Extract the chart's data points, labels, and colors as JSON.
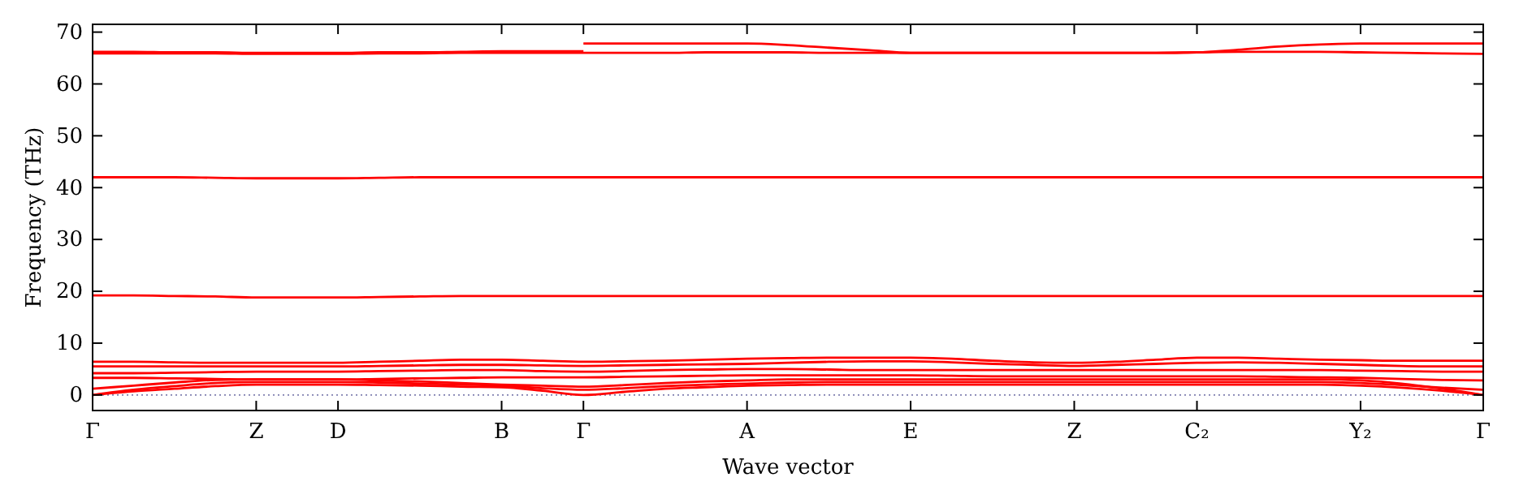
{
  "chart_data": {
    "type": "line",
    "xlabel": "Wave vector",
    "ylabel": "Frequency (THz)",
    "categories": [
      "Γ",
      null,
      null,
      null,
      "Z",
      null,
      "D",
      null,
      null,
      null,
      "B",
      null,
      "Γ",
      null,
      null,
      null,
      "A",
      null,
      null,
      null,
      "E",
      null,
      null,
      null,
      "Z",
      null,
      null,
      "C₂",
      null,
      null,
      null,
      "Y₂",
      null,
      null,
      "Γ"
    ],
    "ylim": [
      -3,
      71.5
    ],
    "yticks": [
      0,
      10,
      20,
      30,
      40,
      50,
      60,
      70
    ],
    "ref_lines": [
      {
        "axis": "y",
        "value": 0,
        "color": "#8080b0",
        "line_style": "dotted"
      }
    ],
    "series": [
      {
        "color": "#ff0000",
        "values": [
          0,
          0.7,
          1.2,
          1.7,
          2,
          2,
          2,
          1.9,
          1.8,
          1.6,
          1.5,
          0.8,
          0,
          0.6,
          1.2,
          1.5,
          1.8,
          1.9,
          2,
          2,
          2,
          2,
          2,
          2,
          2,
          2,
          2,
          2,
          2,
          2,
          2,
          1.8,
          1.4,
          0.8,
          0
        ]
      },
      {
        "color": "#ff0000",
        "values": [
          0,
          1,
          1.7,
          2.3,
          2.5,
          2.5,
          2.5,
          2.4,
          2.2,
          2,
          1.8,
          1.3,
          1,
          1.3,
          1.7,
          2,
          2.2,
          2.4,
          2.5,
          2.5,
          2.5,
          2.5,
          2.5,
          2.5,
          2.5,
          2.5,
          2.5,
          2.5,
          2.5,
          2.5,
          2.5,
          2.3,
          1.9,
          1.4,
          1
        ]
      },
      {
        "color": "#ff0000",
        "values": [
          1.2,
          1.8,
          2.4,
          2.9,
          3,
          3,
          3,
          2.8,
          2.6,
          2.3,
          2,
          1.8,
          1.6,
          1.9,
          2.3,
          2.6,
          2.8,
          3,
          3,
          3,
          3,
          3,
          3,
          3,
          3,
          3,
          3,
          3,
          3,
          3,
          3,
          2.8,
          2.2,
          1.2,
          0
        ]
      },
      {
        "color": "#ff0000",
        "values": [
          3.3,
          3.3,
          3.2,
          3.1,
          3,
          3,
          3,
          3.1,
          3.2,
          3.3,
          3.4,
          3.4,
          3.4,
          3.5,
          3.6,
          3.7,
          3.8,
          3.8,
          3.8,
          3.8,
          3.8,
          3.7,
          3.6,
          3.6,
          3.6,
          3.6,
          3.6,
          3.6,
          3.6,
          3.5,
          3.4,
          3.3,
          3.1,
          2.9,
          2.8
        ]
      },
      {
        "color": "#ff0000",
        "values": [
          4.2,
          4.2,
          4.3,
          4.4,
          4.5,
          4.5,
          4.5,
          4.6,
          4.7,
          4.8,
          4.8,
          4.6,
          4.5,
          4.6,
          4.8,
          4.9,
          5,
          5,
          4.9,
          4.8,
          4.8,
          4.8,
          4.8,
          4.8,
          4.8,
          4.8,
          4.8,
          4.8,
          4.8,
          4.8,
          4.8,
          4.7,
          4.6,
          4.5,
          4.5
        ]
      },
      {
        "color": "#ff0000",
        "values": [
          5.5,
          5.5,
          5.5,
          5.5,
          5.5,
          5.5,
          5.5,
          5.6,
          5.7,
          5.8,
          5.8,
          5.7,
          5.6,
          5.7,
          5.8,
          5.9,
          6,
          6.2,
          6.4,
          6.5,
          6.5,
          6.3,
          6,
          5.8,
          5.6,
          5.8,
          6,
          6.2,
          6.3,
          6.2,
          6,
          5.8,
          5.6,
          5.5,
          5.5
        ]
      },
      {
        "color": "#ff0000",
        "values": [
          6.4,
          6.4,
          6.3,
          6.2,
          6.2,
          6.2,
          6.2,
          6.4,
          6.6,
          6.8,
          6.8,
          6.6,
          6.4,
          6.5,
          6.6,
          6.8,
          7,
          7.1,
          7.2,
          7.2,
          7.2,
          7,
          6.6,
          6.3,
          6.2,
          6.4,
          6.8,
          7.2,
          7.2,
          7,
          6.8,
          6.7,
          6.6,
          6.6,
          6.6
        ]
      },
      {
        "color": "#ff0000",
        "values": [
          19.2,
          19.2,
          19.1,
          19,
          18.8,
          18.8,
          18.8,
          18.9,
          19,
          19.1,
          19.1,
          19.1,
          19.1,
          19.1,
          19.1,
          19.1,
          19.1,
          19.1,
          19.1,
          19.1,
          19.1,
          19.1,
          19.1,
          19.1,
          19.1,
          19.1,
          19.1,
          19.1,
          19.1,
          19.1,
          19.1,
          19.1,
          19.1,
          19.1,
          19.1
        ]
      },
      {
        "color": "#ff0000",
        "values": [
          42,
          42,
          42,
          41.9,
          41.8,
          41.8,
          41.8,
          41.9,
          42,
          42,
          42,
          42,
          42,
          42,
          42,
          42,
          42,
          42,
          42,
          42,
          42,
          42,
          42,
          42,
          42,
          42,
          42,
          42,
          42,
          42,
          42,
          42,
          42,
          42,
          42
        ]
      },
      {
        "color": "#ff0000",
        "values": [
          65.9,
          65.9,
          65.9,
          65.9,
          65.8,
          65.8,
          65.8,
          65.9,
          65.9,
          66,
          66,
          66,
          66,
          66,
          66,
          66.1,
          66.1,
          66.1,
          66,
          66,
          66,
          66,
          66,
          66,
          66,
          66,
          66,
          66.1,
          66.2,
          66.2,
          66.2,
          66.1,
          66,
          65.9,
          65.8
        ]
      },
      {
        "color": "#ff0000",
        "values": [
          66.2,
          66.2,
          66.1,
          66.1,
          66,
          66,
          66,
          66.1,
          66.1,
          66.2,
          66.3,
          66.3,
          66.3,
          null,
          null,
          null,
          null,
          null,
          null,
          null,
          null,
          null,
          null,
          null,
          null,
          null,
          null,
          null,
          null,
          null,
          null,
          null,
          null,
          null,
          null
        ]
      },
      {
        "color": "#ff0000",
        "values": [
          null,
          null,
          null,
          null,
          null,
          null,
          null,
          null,
          null,
          null,
          null,
          null,
          67.8,
          67.8,
          67.8,
          67.8,
          67.8,
          67.5,
          67,
          66.5,
          66,
          66,
          66,
          66,
          66,
          66,
          66,
          66.1,
          66.6,
          67.2,
          67.6,
          67.8,
          67.8,
          67.8,
          67.8
        ]
      }
    ]
  }
}
